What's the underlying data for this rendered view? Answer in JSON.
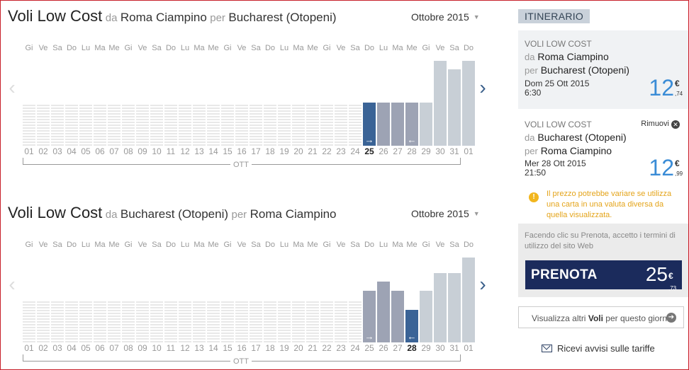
{
  "outbound": {
    "title_main": "Voli Low Cost",
    "title_from_prefix": "da",
    "title_from": "Roma Ciampino",
    "title_to_prefix": "per",
    "title_to": "Bucharest (Otopeni)",
    "month": "Ottobre 2015",
    "month_short": "OTT",
    "weekdays": [
      "Gi",
      "Ve",
      "Sa",
      "Do",
      "Lu",
      "Ma",
      "Me",
      "Gi",
      "Ve",
      "Sa",
      "Do",
      "Lu",
      "Ma",
      "Me",
      "Gi",
      "Ve",
      "Sa",
      "Do",
      "Lu",
      "Ma",
      "Me",
      "Gi",
      "Ve",
      "Sa",
      "Do",
      "Lu",
      "Ma",
      "Me",
      "Gi",
      "Ve",
      "Sa",
      "Do"
    ],
    "days": [
      "01",
      "02",
      "03",
      "04",
      "05",
      "06",
      "07",
      "08",
      "09",
      "10",
      "11",
      "12",
      "13",
      "14",
      "15",
      "16",
      "17",
      "18",
      "19",
      "20",
      "21",
      "22",
      "23",
      "24",
      "25",
      "26",
      "27",
      "28",
      "29",
      "30",
      "31",
      "01"
    ],
    "bar_heights": [
      0,
      0,
      0,
      0,
      0,
      0,
      0,
      0,
      0,
      0,
      0,
      0,
      0,
      0,
      0,
      0,
      0,
      0,
      0,
      0,
      0,
      0,
      0,
      0,
      0.51,
      0.51,
      0.51,
      0.51,
      0.51,
      1.0,
      0.9,
      1.0
    ],
    "bar_styles": [
      "",
      "",
      "",
      "",
      "",
      "",
      "",
      "",
      "",
      "",
      "",
      "",
      "",
      "",
      "",
      "",
      "",
      "",
      "",
      "",
      "",
      "",
      "",
      "",
      "sel",
      "dark",
      "dark",
      "dark",
      "light",
      "light",
      "light",
      "light"
    ],
    "selected_index": 24,
    "arrows": [
      {
        "index": 24,
        "glyph": "→"
      },
      {
        "index": 27,
        "glyph": "←"
      }
    ]
  },
  "inbound": {
    "title_main": "Voli Low Cost",
    "title_from_prefix": "da",
    "title_from": "Bucharest (Otopeni)",
    "title_to_prefix": "per",
    "title_to": "Roma Ciampino",
    "month": "Ottobre 2015",
    "month_short": "OTT",
    "weekdays": [
      "Gi",
      "Ve",
      "Sa",
      "Do",
      "Lu",
      "Ma",
      "Me",
      "Gi",
      "Ve",
      "Sa",
      "Do",
      "Lu",
      "Ma",
      "Me",
      "Gi",
      "Ve",
      "Sa",
      "Do",
      "Lu",
      "Ma",
      "Me",
      "Gi",
      "Ve",
      "Sa",
      "Do",
      "Lu",
      "Ma",
      "Me",
      "Gi",
      "Ve",
      "Sa",
      "Do"
    ],
    "days": [
      "01",
      "02",
      "03",
      "04",
      "05",
      "06",
      "07",
      "08",
      "09",
      "10",
      "11",
      "12",
      "13",
      "14",
      "15",
      "16",
      "17",
      "18",
      "19",
      "20",
      "21",
      "22",
      "23",
      "24",
      "25",
      "26",
      "27",
      "28",
      "29",
      "30",
      "31",
      "01"
    ],
    "bar_heights": [
      0,
      0,
      0,
      0,
      0,
      0,
      0,
      0,
      0,
      0,
      0,
      0,
      0,
      0,
      0,
      0,
      0,
      0,
      0,
      0,
      0,
      0,
      0,
      0,
      0.61,
      0.72,
      0.61,
      0.38,
      0.61,
      0.82,
      0.82,
      1.0
    ],
    "bar_styles": [
      "",
      "",
      "",
      "",
      "",
      "",
      "",
      "",
      "",
      "",
      "",
      "",
      "",
      "",
      "",
      "",
      "",
      "",
      "",
      "",
      "",
      "",
      "",
      "",
      "dark",
      "dark",
      "dark",
      "sel",
      "light",
      "light",
      "light",
      "light"
    ],
    "selected_index": 27,
    "arrows": [
      {
        "index": 24,
        "glyph": "→"
      },
      {
        "index": 27,
        "glyph": "←"
      }
    ]
  },
  "itinerary": {
    "header": "ITINERARIO",
    "flight1": {
      "kind": "VOLI LOW COST",
      "from_prefix": "da",
      "from": "Roma Ciampino",
      "to_prefix": "per",
      "to": "Bucharest (Otopeni)",
      "date": "Dom 25 Ott 2015",
      "time": "6:30",
      "price_int": "12",
      "price_cur": "€",
      "price_dec": ",74"
    },
    "flight2": {
      "kind": "VOLI LOW COST",
      "remove_label": "Rimuovi",
      "from_prefix": "da",
      "from": "Bucharest (Otopeni)",
      "to_prefix": "per",
      "to": "Roma Ciampino",
      "date": "Mer 28 Ott 2015",
      "time": "21:50",
      "price_int": "12",
      "price_cur": "€",
      "price_dec": ",99"
    },
    "warning": "Il prezzo potrebbe variare se utilizza una carta in una valuta diversa da quella visualizzata.",
    "terms": "Facendo clic su Prenota, accetto i termini di utilizzo del sito Web",
    "book_label": "PRENOTA",
    "total_int": "25",
    "total_cur": "€",
    "total_dec": ",73",
    "more_prefix": "Visualizza altri",
    "more_bold": "Voli",
    "more_suffix": "per questo giorno",
    "alerts_label": "Ricevi avvisi sulle tariffe"
  },
  "colors": {
    "selected_bar": "#3a6396",
    "dark_bar": "#9da3b4",
    "light_bar": "#c8cfd6",
    "price_blue": "#3a8cd6",
    "book_button": "#1b2b5c",
    "warning": "#e4a41a"
  },
  "icons": {
    "prev": "chevron-left-icon",
    "next": "chevron-right-icon",
    "remove": "close-circle-icon",
    "warning": "warning-icon",
    "go": "arrow-right-circle-icon",
    "mail": "mail-icon"
  }
}
